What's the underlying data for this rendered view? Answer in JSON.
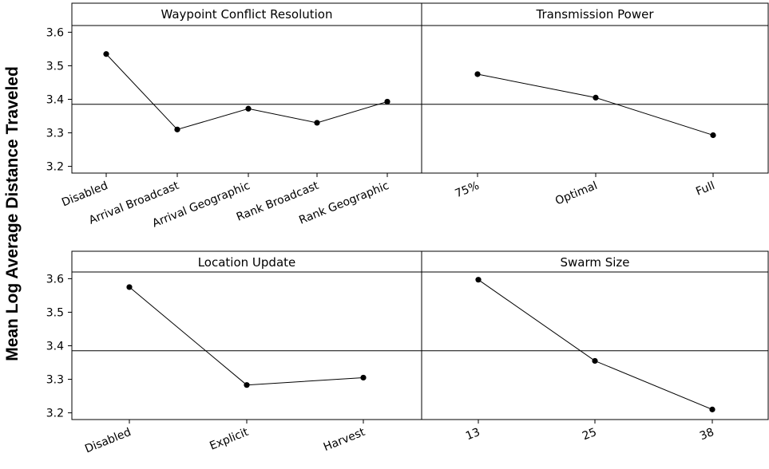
{
  "chart_data": {
    "type": "line",
    "ylabel": "Mean Log Average Distance Traveled",
    "ylim": [
      3.18,
      3.62
    ],
    "yticks": [
      "3.2",
      "3.3",
      "3.4",
      "3.5",
      "3.6"
    ],
    "reference_line": 3.385,
    "panels": [
      {
        "title": "Waypoint Conflict Resolution",
        "categories": [
          "Disabled",
          "Arrival Broadcast",
          "Arrival Geographic",
          "Rank Broadcast",
          "Rank Geographic"
        ],
        "values": [
          3.535,
          3.31,
          3.372,
          3.33,
          3.393
        ]
      },
      {
        "title": "Transmission Power",
        "categories": [
          "75%",
          "Optimal",
          "Full"
        ],
        "values": [
          3.475,
          3.405,
          3.293
        ]
      },
      {
        "title": "Location Update",
        "categories": [
          "Disabled",
          "Explicit",
          "Harvest"
        ],
        "values": [
          3.575,
          3.283,
          3.305
        ]
      },
      {
        "title": "Swarm Size",
        "categories": [
          "13",
          "25",
          "38"
        ],
        "values": [
          3.597,
          3.355,
          3.21
        ]
      }
    ]
  }
}
